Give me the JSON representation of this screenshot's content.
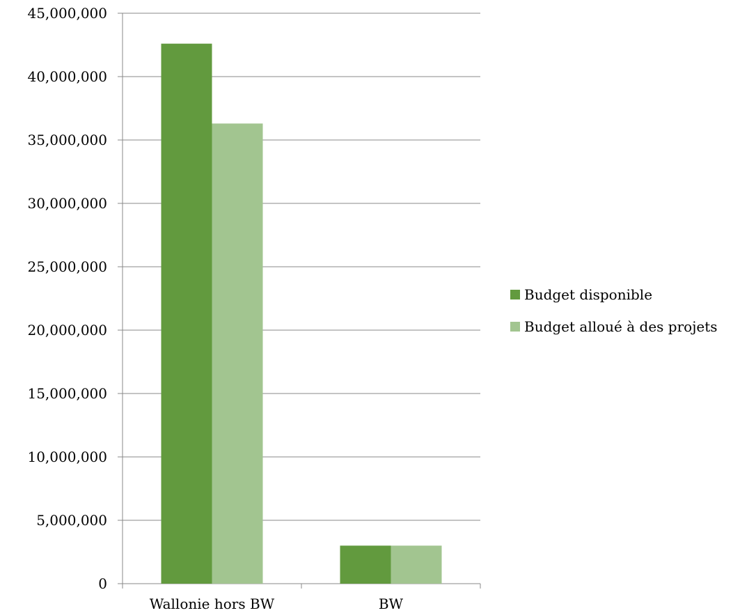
{
  "chart_data": {
    "type": "bar",
    "title": "",
    "xlabel": "",
    "ylabel": "",
    "categories": [
      "Wallonie hors BW",
      "BW"
    ],
    "series": [
      {
        "name": "Budget disponible",
        "color": "#629a3e",
        "values": [
          42600000,
          3000000
        ]
      },
      {
        "name": "Budget alloué à des projets",
        "color": "#a2c590",
        "values": [
          36300000,
          3000000
        ]
      }
    ],
    "ylim": [
      0,
      45000000
    ],
    "yticks": [
      0,
      5000000,
      10000000,
      15000000,
      20000000,
      25000000,
      30000000,
      35000000,
      40000000,
      45000000
    ],
    "ytick_labels": [
      "0",
      "5,000,000",
      "10,000,000",
      "15,000,000",
      "20,000,000",
      "25,000,000",
      "30,000,000",
      "35,000,000",
      "40,000,000",
      "45,000,000"
    ],
    "grid": true,
    "gridline_color": "#888888",
    "legend_position": "right"
  }
}
